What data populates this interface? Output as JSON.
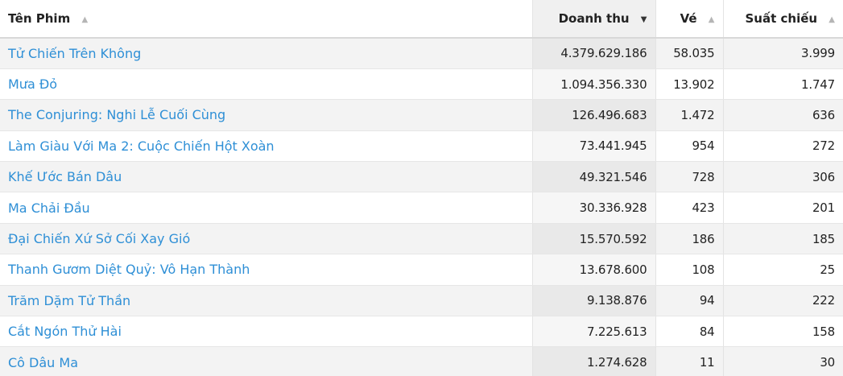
{
  "table": {
    "headers": {
      "title": "Tên Phim",
      "revenue": "Doanh thu",
      "tickets": "Vé",
      "showings": "Suất chiếu"
    },
    "sort": {
      "title_icon": "▲",
      "revenue_icon": "▼",
      "tickets_icon": "▲",
      "showings_icon": "▲",
      "active_column": "revenue",
      "direction": "descending"
    },
    "rows": [
      {
        "title": "Tử Chiến Trên Không",
        "revenue": "4.379.629.186",
        "tickets": "58.035",
        "showings": "3.999"
      },
      {
        "title": "Mưa Đỏ",
        "revenue": "1.094.356.330",
        "tickets": "13.902",
        "showings": "1.747"
      },
      {
        "title": "The Conjuring: Nghi Lễ Cuối Cùng",
        "revenue": "126.496.683",
        "tickets": "1.472",
        "showings": "636"
      },
      {
        "title": "Làm Giàu Với Ma 2: Cuộc Chiến Hột Xoàn",
        "revenue": "73.441.945",
        "tickets": "954",
        "showings": "272"
      },
      {
        "title": "Khế Ước Bán Dâu",
        "revenue": "49.321.546",
        "tickets": "728",
        "showings": "306"
      },
      {
        "title": "Ma Chải Đầu",
        "revenue": "30.336.928",
        "tickets": "423",
        "showings": "201"
      },
      {
        "title": "Đại Chiến Xứ Sở Cối Xay Gió",
        "revenue": "15.570.592",
        "tickets": "186",
        "showings": "185"
      },
      {
        "title": "Thanh Gươm Diệt Quỷ: Vô Hạn Thành",
        "revenue": "13.678.600",
        "tickets": "108",
        "showings": "25"
      },
      {
        "title": "Trăm Dặm Tử Thần",
        "revenue": "9.138.876",
        "tickets": "94",
        "showings": "222"
      },
      {
        "title": "Cắt Ngón Thử Hài",
        "revenue": "7.225.613",
        "tickets": "84",
        "showings": "158"
      },
      {
        "title": "Cô Dâu Ma",
        "revenue": "1.274.628",
        "tickets": "11",
        "showings": "30"
      }
    ]
  },
  "colors": {
    "link": "#2e8fd6",
    "sorted_header_bg": "#f0f0f0",
    "odd_row_bg": "#f3f3f3"
  }
}
